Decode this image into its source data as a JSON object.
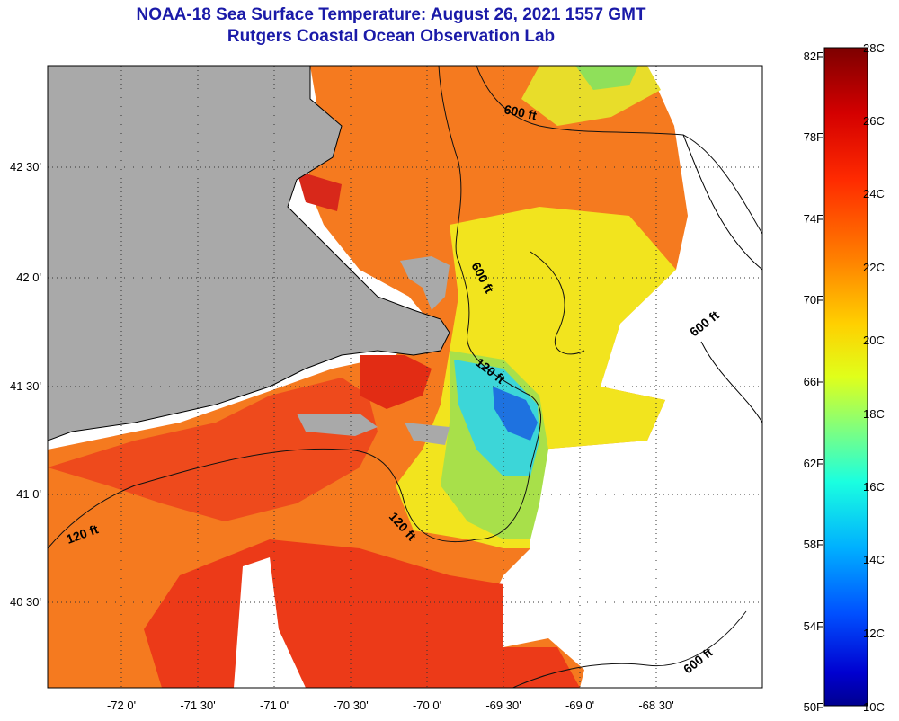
{
  "header": {
    "title_line1": "NOAA-18 Sea Surface Temperature:  August 26, 2021 1557 GMT",
    "title_line2": "Rutgers Coastal Ocean Observation Lab"
  },
  "map": {
    "latitude_labels": [
      "42 30'",
      "42 0'",
      "41 30'",
      "41 0'",
      "40 30'"
    ],
    "longitude_labels": [
      "-72 0'",
      "-71 30'",
      "-71 0'",
      "-70 30'",
      "-70 0'",
      "-69 30'",
      "-69 0'",
      "-68 30'"
    ],
    "contour_labels": [
      "600 ft",
      "600 ft",
      "600 ft",
      "120 ft",
      "120 ft",
      "120 ft",
      "600 ft"
    ],
    "colors": {
      "land": "#a9a9a9",
      "no_data": "#ffffff",
      "warm": "#e8321e",
      "orange": "#f57a1f",
      "yellow": "#f4e91c",
      "green": "#8fe05a",
      "cyan": "#2ad0e8",
      "blue": "#1e6fe0"
    }
  },
  "colorbar": {
    "fahrenheit_labels": [
      "82F",
      "78F",
      "74F",
      "70F",
      "66F",
      "62F",
      "58F",
      "54F",
      "50F"
    ],
    "celsius_labels": [
      "28C",
      "26C",
      "24C",
      "22C",
      "20C",
      "18C",
      "16C",
      "14C",
      "12C",
      "10C"
    ],
    "gradient": [
      "#7d0000",
      "#d40000",
      "#ff2a00",
      "#ff7f00",
      "#ffd000",
      "#e0ff1a",
      "#7fff7f",
      "#1affe0",
      "#00b0ff",
      "#0050ff",
      "#0000d0",
      "#00008f"
    ]
  }
}
